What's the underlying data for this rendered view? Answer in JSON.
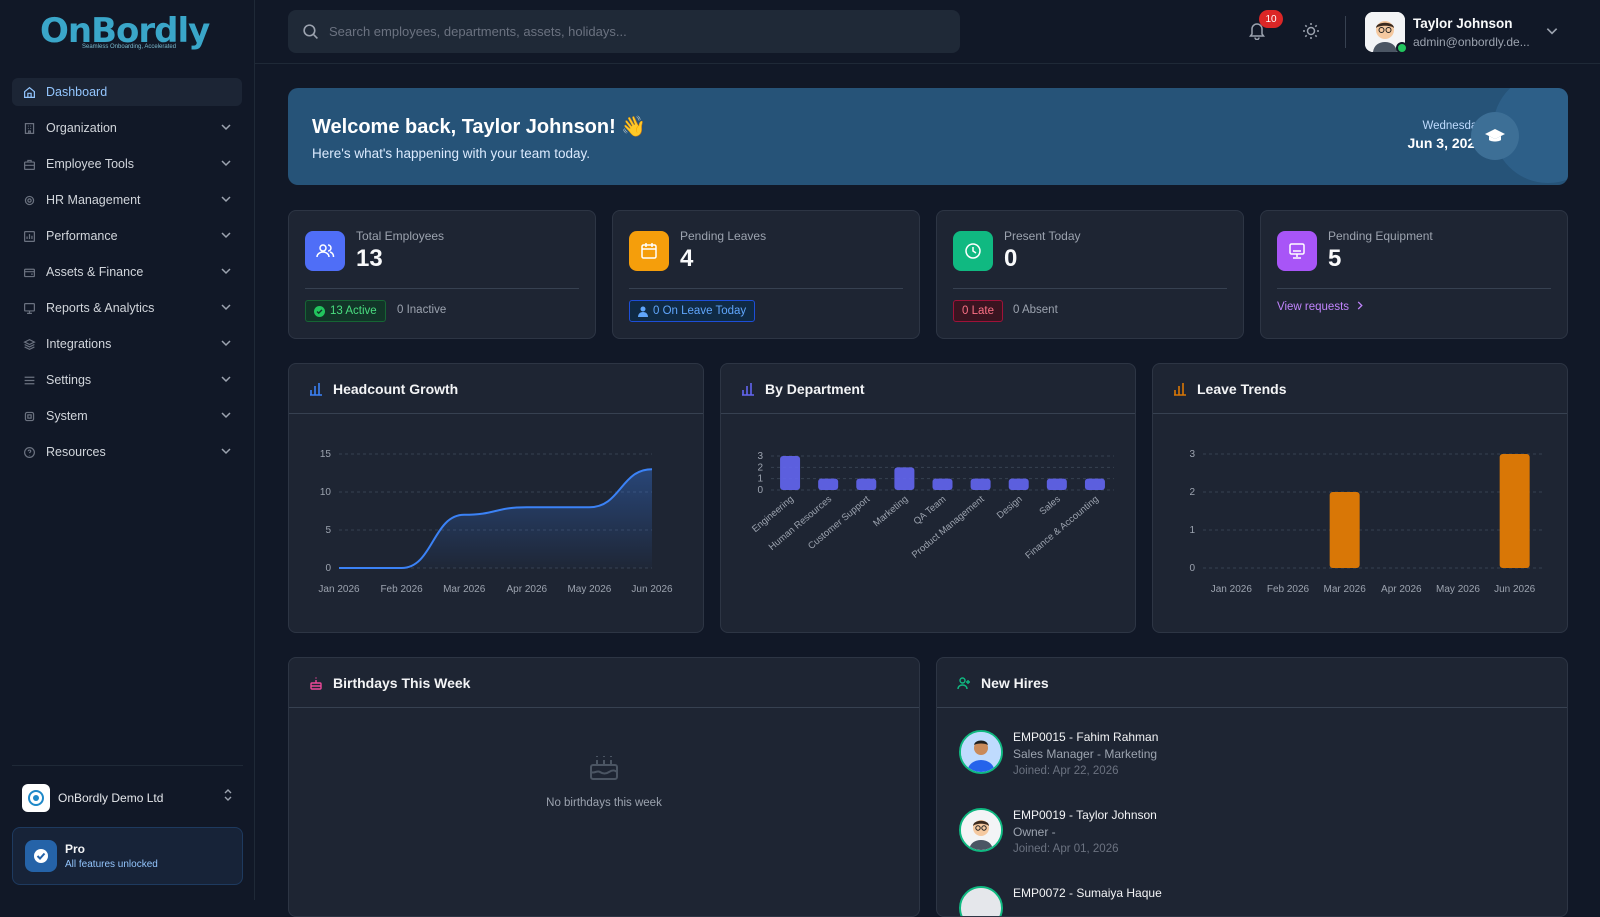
{
  "brand": {
    "name": "OnBordly",
    "tagline": "Seamless Onboarding, Accelerated"
  },
  "search": {
    "placeholder": "Search employees, departments, assets, holidays..."
  },
  "notifications": {
    "count": "10"
  },
  "user": {
    "name": "Taylor Johnson",
    "email": "admin@onbordly.de..."
  },
  "sidebar": {
    "items": [
      {
        "label": "Dashboard",
        "icon": "home-icon"
      },
      {
        "label": "Organization",
        "icon": "building-icon"
      },
      {
        "label": "Employee Tools",
        "icon": "toolbox-icon"
      },
      {
        "label": "HR Management",
        "icon": "people-gear-icon"
      },
      {
        "label": "Performance",
        "icon": "chart-icon"
      },
      {
        "label": "Assets & Finance",
        "icon": "wallet-icon"
      },
      {
        "label": "Reports & Analytics",
        "icon": "report-icon"
      },
      {
        "label": "Integrations",
        "icon": "layers-icon"
      },
      {
        "label": "Settings",
        "icon": "sliders-icon"
      },
      {
        "label": "System",
        "icon": "cpu-icon"
      },
      {
        "label": "Resources",
        "icon": "help-icon"
      }
    ],
    "org_name": "OnBordly Demo Ltd",
    "plan": {
      "title": "Pro",
      "subtitle": "All features unlocked"
    }
  },
  "welcome": {
    "title": "Welcome back, Taylor Johnson! 👋",
    "subtitle": "Here's what's happening with your team today.",
    "weekday": "Wednesday",
    "date": "Jun 3, 2026"
  },
  "stats": {
    "employees": {
      "label": "Total Employees",
      "value": "13",
      "chip": "13 Active",
      "extra": "0 Inactive"
    },
    "leaves": {
      "label": "Pending Leaves",
      "value": "4",
      "chip": "0 On Leave Today"
    },
    "present": {
      "label": "Present Today",
      "value": "0",
      "chip": "0 Late",
      "extra": "0 Absent"
    },
    "equipment": {
      "label": "Pending Equipment",
      "value": "5",
      "link": "View requests"
    }
  },
  "colors": {
    "accent": "#3b82f6",
    "indigo": "#6366f1",
    "amber": "#d97706",
    "green": "#10b981"
  },
  "panels": {
    "headcount": "Headcount Growth",
    "department": "By Department",
    "leave": "Leave Trends",
    "birthdays": "Birthdays This Week",
    "birthdays_empty": "No birthdays this week",
    "new_hires": "New Hires"
  },
  "chart_data": [
    {
      "type": "area",
      "categories": [
        "Jan 2026",
        "Feb 2026",
        "Mar 2026",
        "Apr 2026",
        "May 2026",
        "Jun 2026"
      ],
      "values": [
        0,
        0,
        7,
        8,
        8,
        13
      ],
      "yticks": [
        0,
        5,
        10,
        15
      ],
      "ylim": [
        0,
        15
      ],
      "grid": true
    },
    {
      "type": "bar",
      "categories": [
        "Engineering",
        "Human Resources",
        "Customer Support",
        "Marketing",
        "QA Team",
        "Product Management",
        "Design",
        "Sales",
        "Finance & Accounting"
      ],
      "values": [
        3,
        1,
        1,
        2,
        1,
        1,
        1,
        1,
        1
      ],
      "yticks": [
        0,
        1,
        2,
        3
      ],
      "ylim": [
        0,
        3
      ],
      "grid": true
    },
    {
      "type": "bar",
      "categories": [
        "Jan 2026",
        "Feb 2026",
        "Mar 2026",
        "Apr 2026",
        "May 2026",
        "Jun 2026"
      ],
      "values": [
        0,
        0,
        2,
        0,
        0,
        3
      ],
      "yticks": [
        0,
        1,
        2,
        3
      ],
      "ylim": [
        0,
        3
      ],
      "grid": true
    }
  ],
  "new_hires": [
    {
      "title": "EMP0015 - Fahim Rahman",
      "role": "Sales Manager - Marketing",
      "joined": "Joined: Apr 22, 2026"
    },
    {
      "title": "EMP0019 - Taylor Johnson",
      "role": "Owner -",
      "joined": "Joined: Apr 01, 2026"
    },
    {
      "title": "EMP0072 - Sumaiya Haque",
      "role": "",
      "joined": ""
    }
  ]
}
